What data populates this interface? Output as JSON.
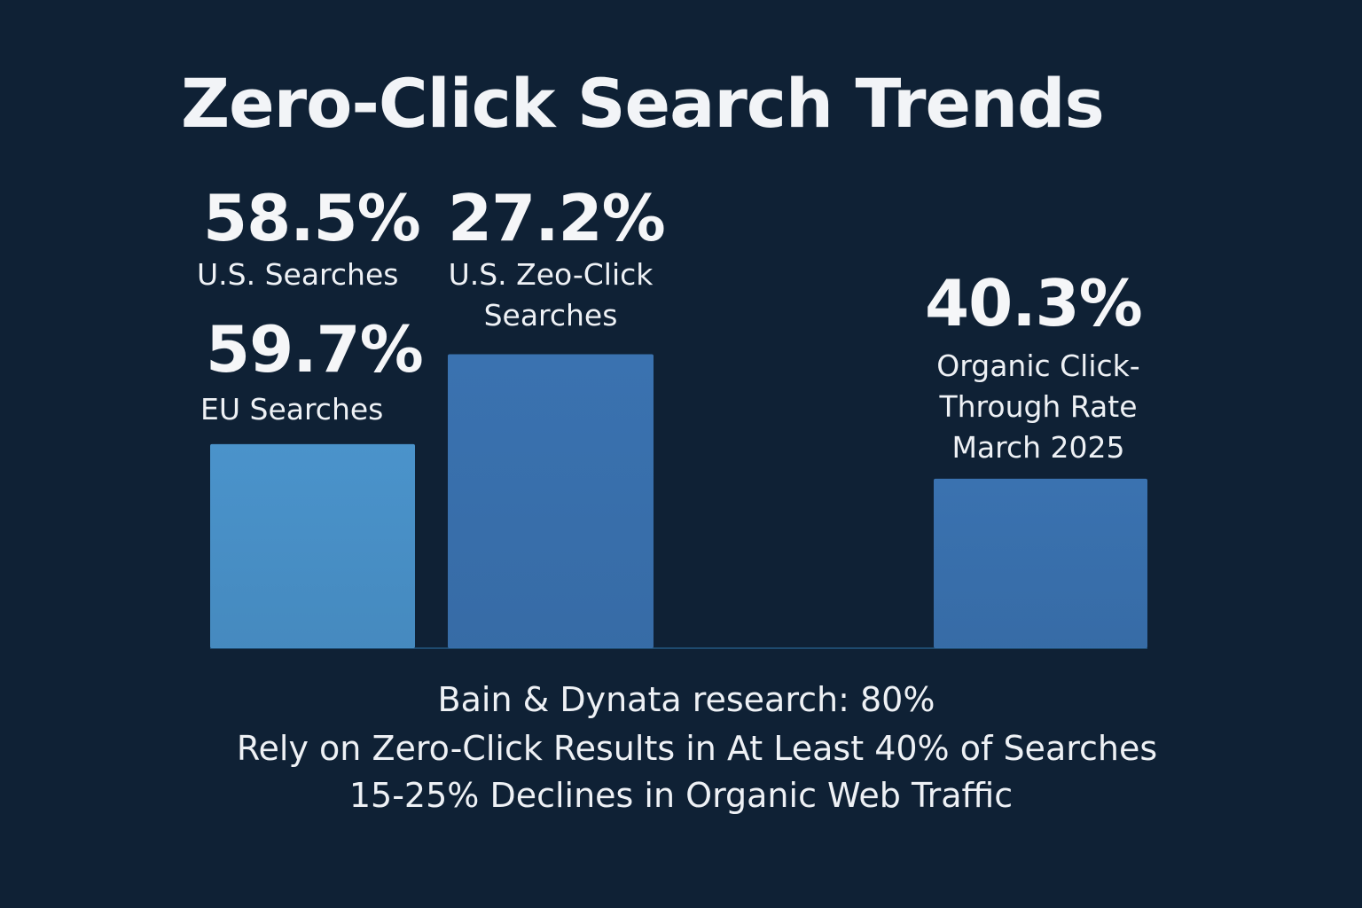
{
  "title": "Zero-Click Search Trends",
  "stats": {
    "us_searches": {
      "value": "58.5%",
      "label": "U.S. Searches"
    },
    "eu_searches": {
      "value": "59.7%",
      "label": "EU Searches"
    },
    "us_zero_click": {
      "value": "27.2%",
      "label_line1": "U.S. Zeo-Click",
      "label_line2": "Searches"
    },
    "organic_ctr": {
      "value": "40.3%",
      "label_line1": "Organic Click-",
      "label_line2": "Through Rate",
      "label_line3": "March 2025"
    }
  },
  "footnotes": {
    "line1": "Bain & Dynata research: 80%",
    "line2": "Rely on Zero-Click Results in At Least 40% of Searches",
    "line3": "15-25% Declines in Organic Web Traffic"
  },
  "colors": {
    "background": "#0f2135",
    "bar_light": "#4a93cb",
    "bar_dark": "#3a72b0",
    "baseline": "#1e4a6e",
    "text": "#f2f4f7"
  },
  "chart_data": {
    "type": "bar",
    "title": "Zero-Click Search Trends",
    "xlabel": "",
    "ylabel": "",
    "categories": [
      "EU Searches",
      "U.S. Zeo-Click Searches",
      "Organic Click-Through Rate March 2025"
    ],
    "values": [
      59.7,
      27.2,
      40.3
    ],
    "relative_heights": [
      0.59,
      0.85,
      0.49
    ],
    "grid": false,
    "legend": "none"
  }
}
